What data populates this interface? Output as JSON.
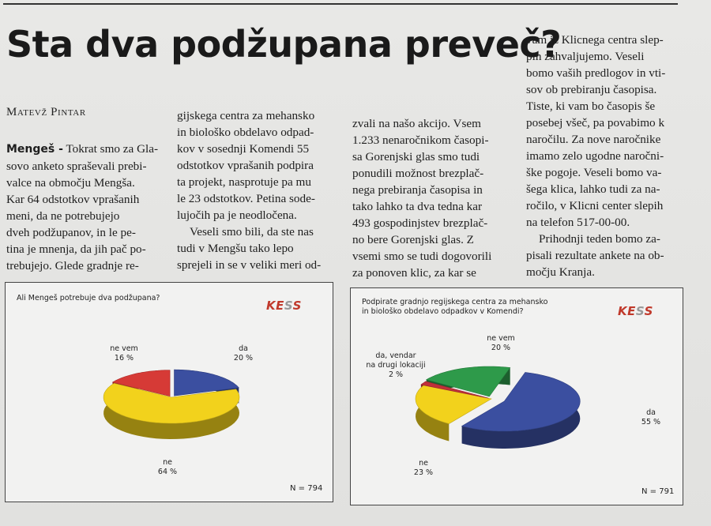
{
  "article": {
    "headline": "Sta dva podžupana preveč?",
    "author": "Matevž Pintar",
    "col1": {
      "place": "Mengeš -",
      "lines": [
        "Tokrat smo za Gla-",
        "sovo anketo spraševali prebi-",
        "valce na območju Mengša.",
        "Kar 64 odstotkov vprašanih",
        "meni, da ne potrebujejo",
        "dveh podžupanov, in le pe-",
        "tina je mnenja, da jih pač po-",
        "trebujejo. Glede gradnje re-"
      ]
    },
    "col2": [
      "gijskega centra za mehansko",
      "in biološko obdelavo odpad-",
      "kov v sosednji Komendi 55",
      "odstotkov vprašanih podpira",
      "ta projekt, nasprotuje pa mu",
      "le 23 odstotkov. Petina sode-",
      "lujočih pa je neodločena.",
      "Veseli smo bili, da ste nas",
      "tudi v Mengšu tako lepo",
      "sprejeli in se v veliki meri od-"
    ],
    "col3": [
      "zvali na našo akcijo. Vsem",
      "1.233 nenaročnikom časopi-",
      "sa Gorenjski glas smo tudi",
      "ponudili možnost brezplač-",
      "nega prebiranja časopisa in",
      "tako lahko ta dva tedna kar",
      "493 gospodinjstev brezplač-",
      "no bere Gorenjski glas. Z",
      "vsemi smo se tudi dogovorili",
      "za ponoven klic, za kar se"
    ],
    "col4": [
      "vam iz Klicnega centra slep-",
      "pih zahvaljujemo. Veseli",
      "bomo vaših predlogov in vti-",
      "sov ob prebiranju časopisa.",
      "Tiste, ki vam bo časopis še",
      "posebej všeč, pa povabimo k",
      "naročilu. Za nove naročnike",
      "imamo zelo ugodne naročni-",
      "ške pogoje. Veseli bomo va-",
      "šega klica, lahko tudi za na-",
      "ročilo, v Klicni center slepih",
      "na telefon 517-00-00.",
      "Prihodnji teden bomo za-",
      "pisali rezultate ankete na ob-",
      "močju Kranja."
    ]
  },
  "chart_data": [
    {
      "type": "pie",
      "title": "Ali Mengeš potrebuje dva podžupana?",
      "logo": "KESS",
      "n_label": "N = 794",
      "slices": [
        {
          "label": "da",
          "value": 20,
          "pct": "20 %",
          "color": "#3b4fa0"
        },
        {
          "label": "ne",
          "value": 64,
          "pct": "64 %",
          "color": "#f2d21c"
        },
        {
          "label": "ne vem",
          "value": 16,
          "pct": "16 %",
          "color": "#d63a36"
        }
      ]
    },
    {
      "type": "pie",
      "title": "Podpirate gradnjo regijskega centra za mehansko in biološko obdelavo odpadkov v Komendi?",
      "title_lines": [
        "Podpirate gradnjo regijskega centra za mehansko",
        "in biološko obdelavo odpadkov v Komendi?"
      ],
      "logo": "KESS",
      "n_label": "N = 791",
      "slices": [
        {
          "label": "da",
          "value": 55,
          "pct": "55 %",
          "color": "#3b4fa0"
        },
        {
          "label": "ne",
          "value": 23,
          "pct": "23 %",
          "color": "#f2d21c"
        },
        {
          "label": "da, vendar na drugi lokaciji",
          "label_lines": [
            "da, vendar",
            "na drugi lokaciji"
          ],
          "value": 2,
          "pct": "2 %",
          "color": "#c0303a"
        },
        {
          "label": "ne vem",
          "value": 20,
          "pct": "20 %",
          "color": "#2e9a4a"
        }
      ]
    }
  ]
}
